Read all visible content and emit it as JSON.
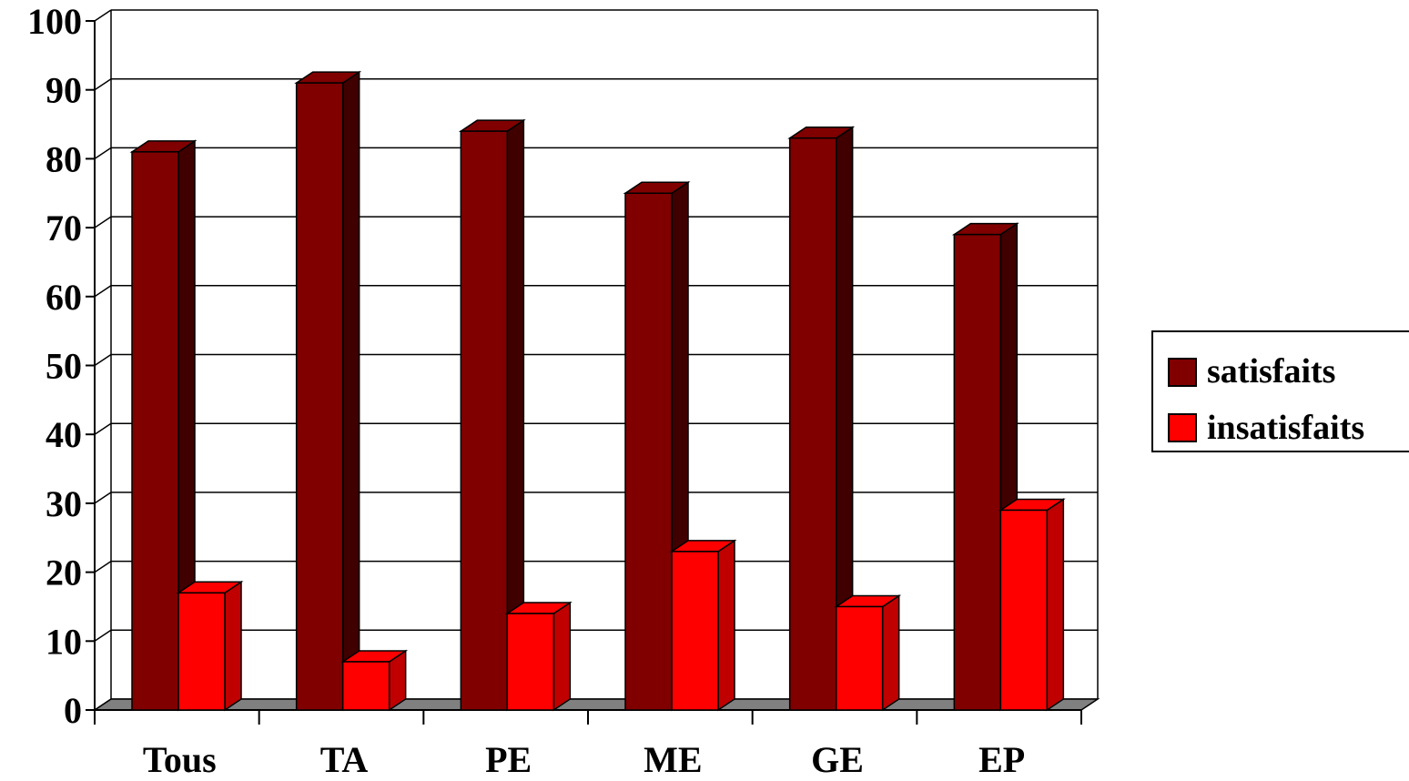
{
  "chart_data": {
    "type": "bar",
    "categories": [
      "Tous",
      "TA",
      "PE",
      "ME",
      "GE",
      "EP"
    ],
    "series": [
      {
        "name": "satisfaits",
        "values": [
          81,
          91,
          84,
          75,
          83,
          69
        ],
        "color": "#800000",
        "side_color": "#400000"
      },
      {
        "name": "insatisfaits",
        "values": [
          17,
          7,
          14,
          23,
          15,
          29
        ],
        "color": "#ff0000",
        "side_color": "#c00000"
      }
    ],
    "ylim": [
      0,
      100
    ],
    "yticks": [
      0,
      10,
      20,
      30,
      40,
      50,
      60,
      70,
      80,
      90,
      100
    ],
    "grid": true,
    "legend_position": "right",
    "floor_color": "#808080"
  }
}
